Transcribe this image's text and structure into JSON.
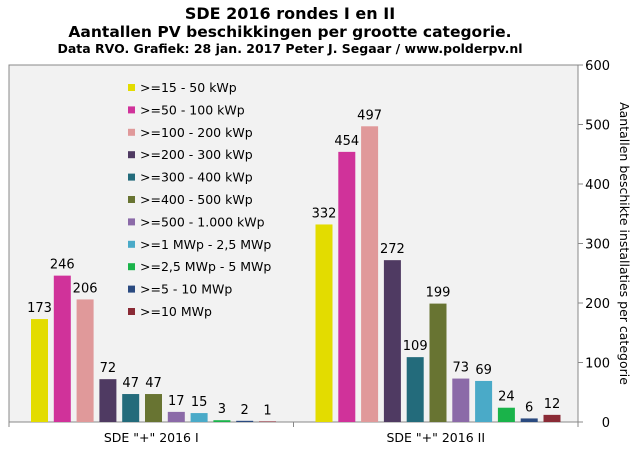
{
  "chart_data": {
    "type": "bar",
    "title": "SDE 2016 rondes I en II",
    "subtitle": "Aantallen  PV beschikkingen  per grootte categorie.",
    "source": "Data RVO. Grafiek: 28 jan. 2017 Peter J. Segaar / www.polderpv.nl",
    "ylabel": "Aantallen beschikte installaties  per categorie",
    "ylim": [
      0,
      600
    ],
    "yticks": [
      0,
      100,
      200,
      300,
      400,
      500,
      600
    ],
    "y_axis_side": "right",
    "grid": false,
    "legend_placement": "top-left",
    "categories": [
      "SDE \"+\" 2016 I",
      "SDE \"+\" 2016 II"
    ],
    "series": [
      {
        "name": ">=15 - 50 kWp",
        "color": "#e3dc00",
        "values": [
          173,
          332
        ]
      },
      {
        "name": ">=50 - 100 kWp",
        "color": "#d0329a",
        "values": [
          246,
          454
        ]
      },
      {
        "name": ">=100 - 200 kWp",
        "color": "#e0999a",
        "values": [
          206,
          497
        ]
      },
      {
        "name": ">=200 - 300 kWp",
        "color": "#4f3a62",
        "values": [
          72,
          272
        ]
      },
      {
        "name": ">=300 - 400 kWp",
        "color": "#236b7b",
        "values": [
          47,
          109
        ]
      },
      {
        "name": ">=400 - 500 kWp",
        "color": "#687432",
        "values": [
          47,
          199
        ]
      },
      {
        "name": ">=500 - 1.000 kWp",
        "color": "#8b6aa8",
        "values": [
          17,
          73
        ]
      },
      {
        "name": ">=1 MWp - 2,5 MWp",
        "color": "#4aaac8",
        "values": [
          15,
          69
        ]
      },
      {
        "name": ">=2,5 MWp - 5 MWp",
        "color": "#1ab34a",
        "values": [
          3,
          24
        ]
      },
      {
        "name": ">=5 - 10 MWp",
        "color": "#2a4a80",
        "values": [
          2,
          6
        ]
      },
      {
        "name": ">=10 MWp",
        "color": "#8a2a35",
        "values": [
          1,
          12
        ]
      }
    ]
  }
}
